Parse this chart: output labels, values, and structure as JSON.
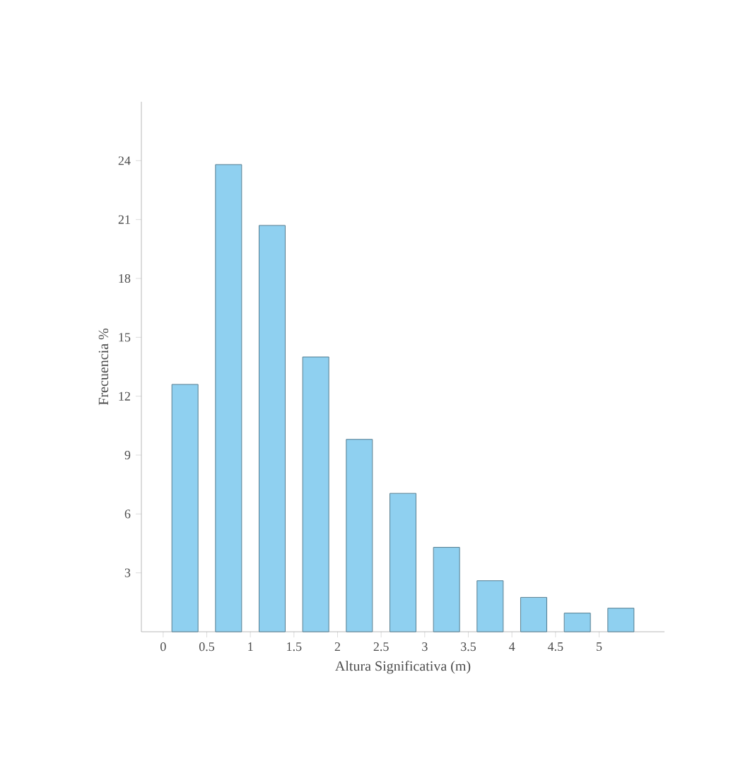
{
  "chart_data": {
    "type": "histogram",
    "xlabel": "Altura Significativa (m)",
    "ylabel": "Frecuencia %",
    "bins": [
      0,
      0.5,
      1,
      1.5,
      2,
      2.5,
      3,
      3.5,
      4,
      4.5,
      5,
      5.5
    ],
    "values": [
      12.6,
      23.8,
      20.7,
      14.0,
      9.8,
      7.05,
      4.3,
      2.6,
      1.75,
      0.95,
      1.2
    ],
    "color": "#8fd0f0",
    "xlim": [
      -0.25,
      5.75
    ],
    "xticks": [
      0,
      0.5,
      1,
      1.5,
      2,
      2.5,
      3,
      3.5,
      4,
      4.5,
      5
    ],
    "ylim": [
      0,
      27
    ],
    "yticks": [
      3,
      6,
      9,
      12,
      15,
      18,
      21,
      24
    ],
    "grid": false
  }
}
